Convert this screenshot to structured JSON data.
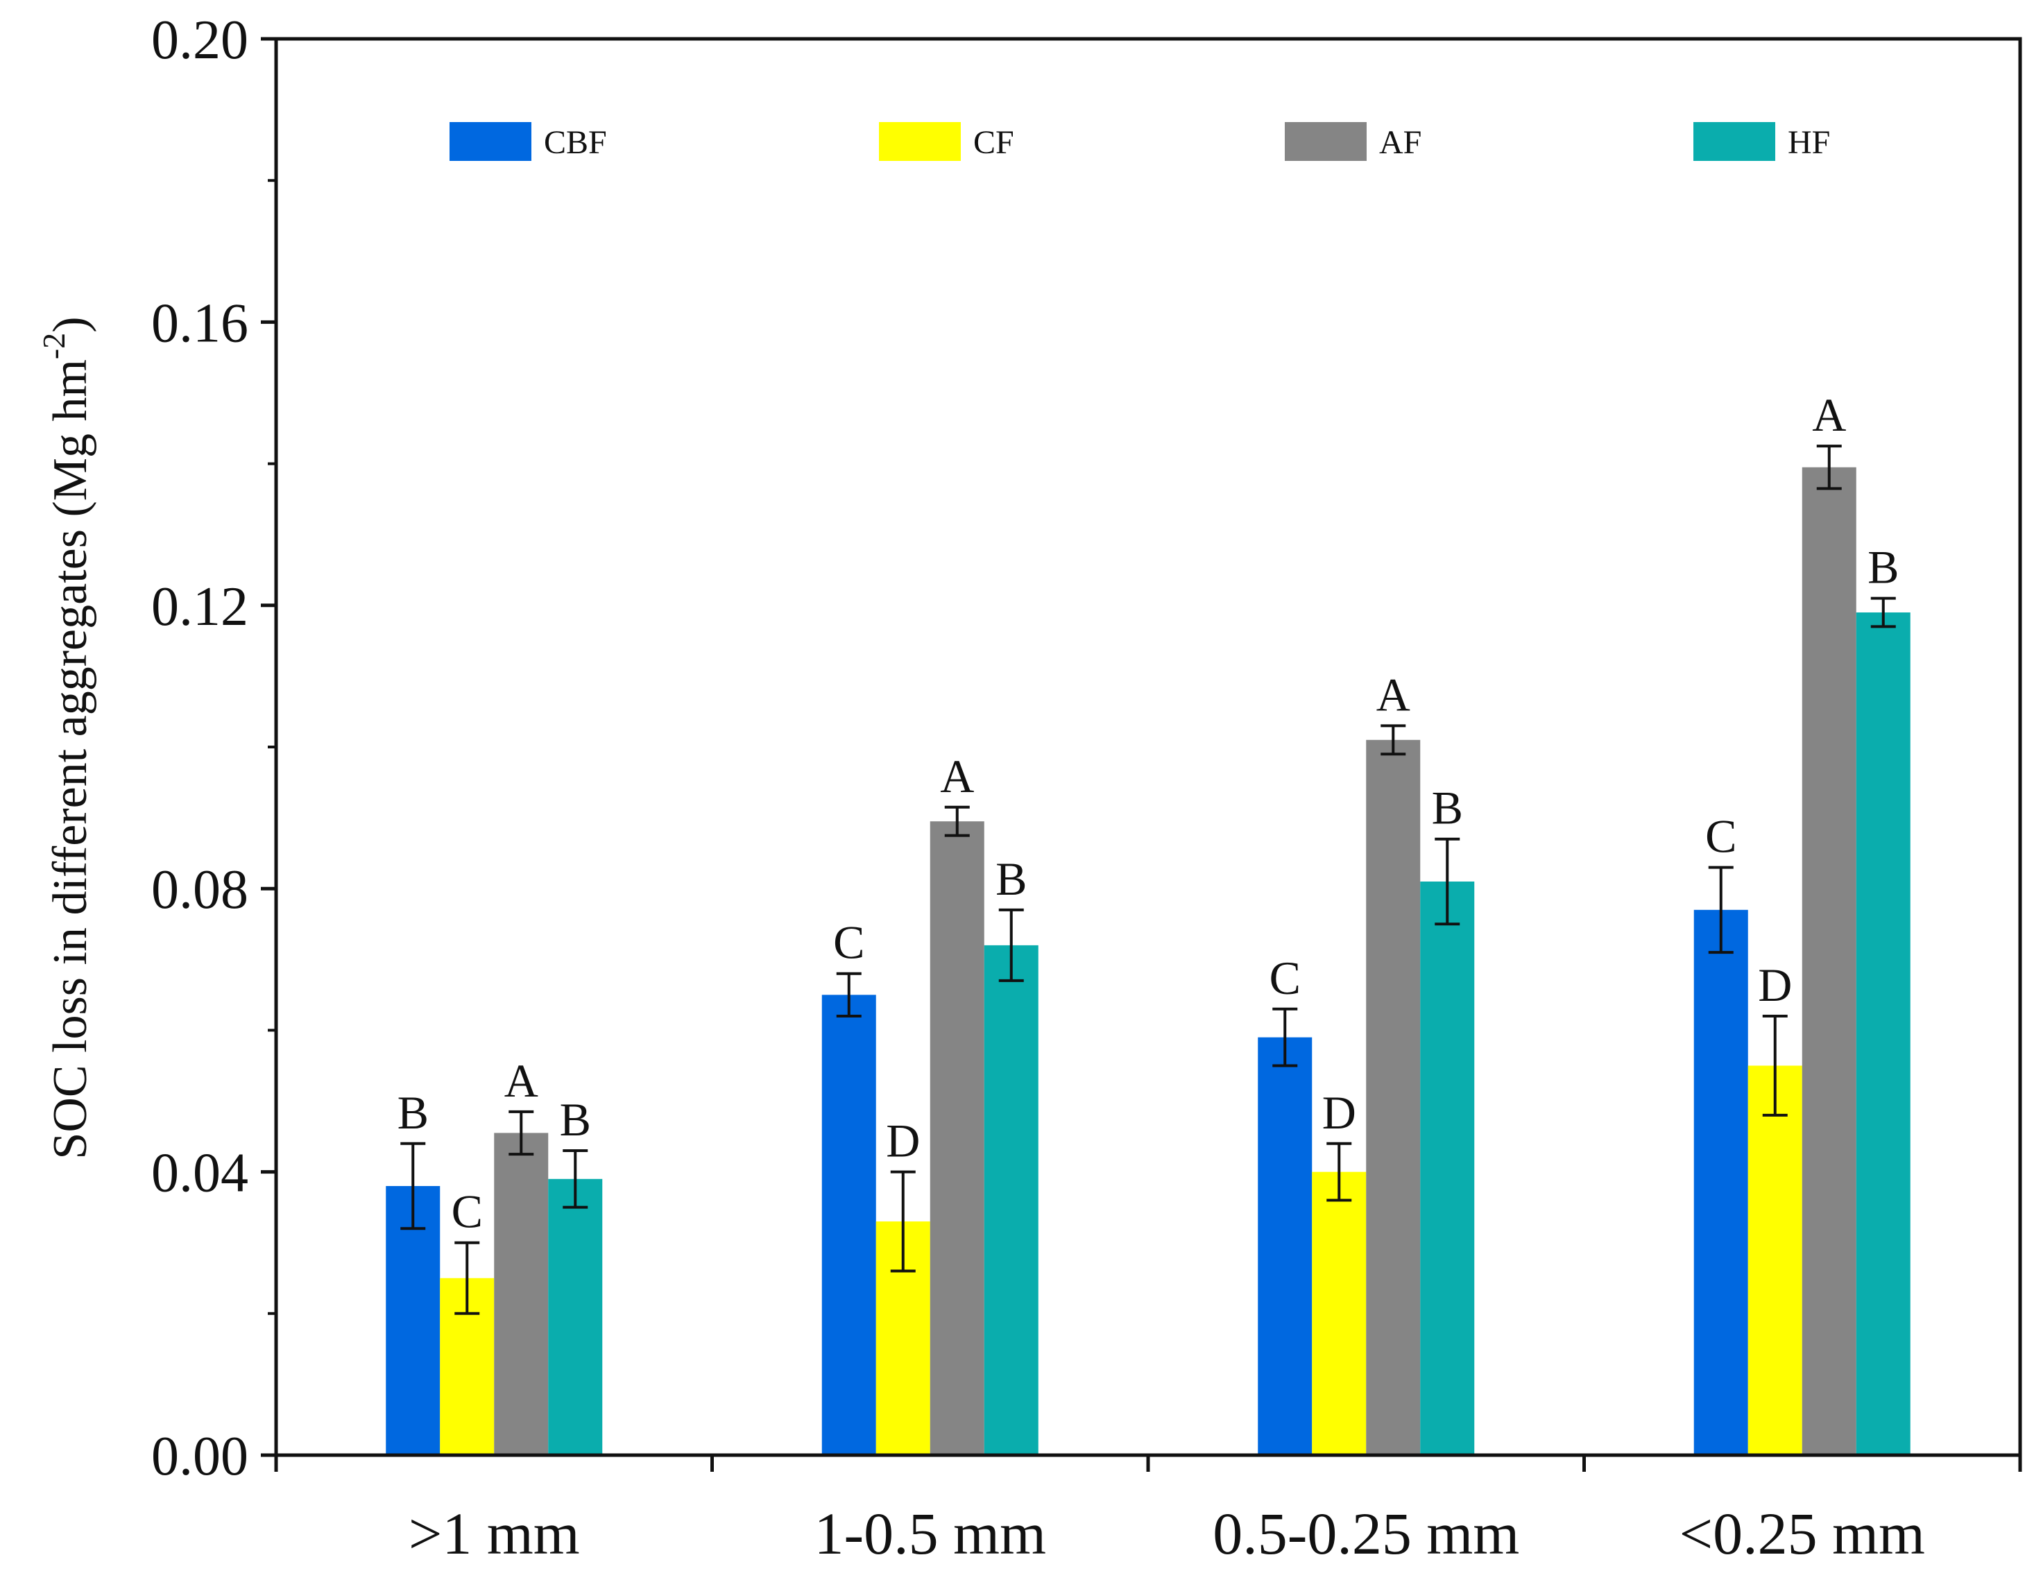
{
  "chart_data": {
    "type": "bar",
    "title": "",
    "xlabel": "",
    "ylabel": "SOC loss in different aggregates (Mg hm",
    "ylabel_superscript": "-2",
    "ylabel_close": ")",
    "ylim": [
      0,
      0.2
    ],
    "yticks": [
      "0.00",
      "0.04",
      "0.08",
      "0.12",
      "0.16",
      "0.20"
    ],
    "categories": [
      ">1 mm",
      "1-0.5 mm",
      "0.5-0.25 mm",
      "<0.25 mm"
    ],
    "legend_position": "top",
    "series": [
      {
        "name": "CBF",
        "color": "#0068E0",
        "values": [
          0.038,
          0.065,
          0.059,
          0.077
        ],
        "errors": [
          0.006,
          0.003,
          0.004,
          0.006
        ],
        "letters": [
          "B",
          "C",
          "C",
          "C"
        ]
      },
      {
        "name": "CF",
        "color": "#FFFF00",
        "values": [
          0.025,
          0.033,
          0.04,
          0.055
        ],
        "errors": [
          0.005,
          0.007,
          0.004,
          0.007
        ],
        "letters": [
          "C",
          "D",
          "D",
          "D"
        ]
      },
      {
        "name": "AF",
        "color": "#858585",
        "values": [
          0.0455,
          0.0895,
          0.101,
          0.1395
        ],
        "errors": [
          0.003,
          0.002,
          0.002,
          0.003
        ],
        "letters": [
          "A",
          "A",
          "A",
          "A"
        ]
      },
      {
        "name": "HF",
        "color": "#0AADAD",
        "values": [
          0.039,
          0.072,
          0.081,
          0.119
        ],
        "errors": [
          0.004,
          0.005,
          0.006,
          0.002
        ],
        "letters": [
          "B",
          "B",
          "B",
          "B"
        ]
      }
    ]
  }
}
